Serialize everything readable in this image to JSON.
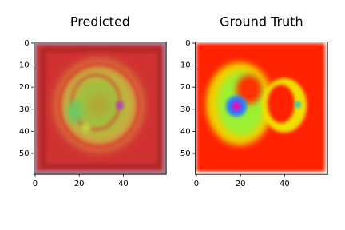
{
  "chart_data": [
    {
      "type": "image",
      "title": "Predicted",
      "xlim": [
        -0.5,
        59.5
      ],
      "ylim": [
        59.5,
        -0.5
      ],
      "xticks": [
        0,
        20,
        40
      ],
      "yticks": [
        0,
        10,
        20,
        30,
        40,
        50
      ]
    },
    {
      "type": "image",
      "title": "Ground Truth",
      "xlim": [
        -0.5,
        59.5
      ],
      "ylim": [
        59.5,
        -0.5
      ],
      "xticks": [
        0,
        20,
        40
      ],
      "yticks": [
        0,
        10,
        20,
        30,
        40,
        50
      ]
    }
  ]
}
